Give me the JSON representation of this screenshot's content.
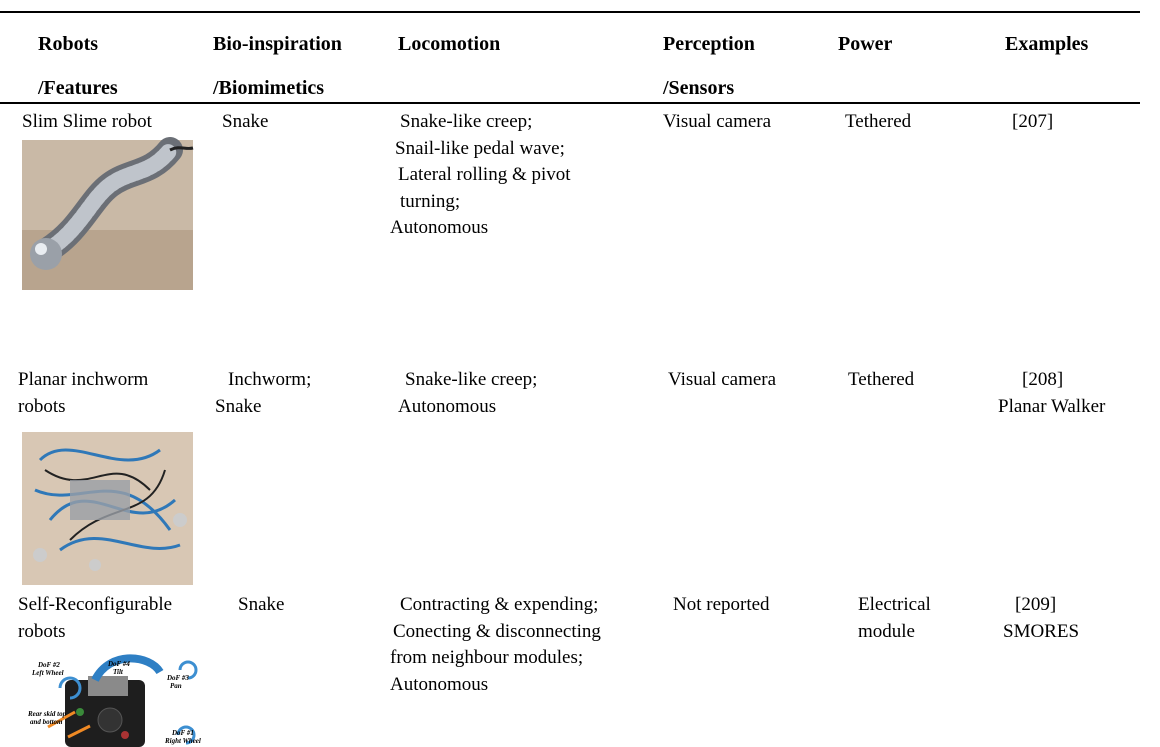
{
  "header": {
    "columns": [
      [
        "Robots",
        "/Features"
      ],
      [
        "Bio-inspiration",
        "/Biomimetics"
      ],
      [
        "Locomotion"
      ],
      [
        "Perception",
        "/Sensors"
      ],
      [
        "Power"
      ],
      [
        "Examples"
      ]
    ]
  },
  "rows": [
    {
      "cells": [
        [
          "Slim Slime robot"
        ],
        [
          "Snake"
        ],
        [
          "Snake-like creep;",
          "Snail-like pedal wave;",
          "Lateral rolling & pivot",
          "turning;",
          "Autonomous"
        ],
        [
          "Visual camera"
        ],
        [
          "Tethered"
        ],
        [
          "[207]"
        ]
      ]
    },
    {
      "cells": [
        [
          "Planar inchworm",
          "robots"
        ],
        [
          "Inchworm;",
          "Snake"
        ],
        [
          "Snake-like creep;",
          "Autonomous"
        ],
        [
          "Visual camera"
        ],
        [
          "Tethered"
        ],
        [
          "[208]",
          "Planar Walker"
        ]
      ]
    },
    {
      "cells": [
        [
          "Self-Reconfigurable",
          "robots"
        ],
        [
          "Snake"
        ],
        [
          "Contracting & expending;",
          "Conecting & disconnecting",
          "from neighbour modules;",
          "Autonomous"
        ],
        [
          "Not reported"
        ],
        [
          "Electrical",
          "module"
        ],
        [
          "[209]",
          "SMORES"
        ]
      ]
    }
  ],
  "figure_labels": [
    "DoF #2",
    "Left Wheel",
    "DoF #4",
    "Tilt",
    "DoF #3",
    "Pan",
    "Rear skid top",
    "and bottom",
    "DoF #1",
    "Right Wheel"
  ]
}
